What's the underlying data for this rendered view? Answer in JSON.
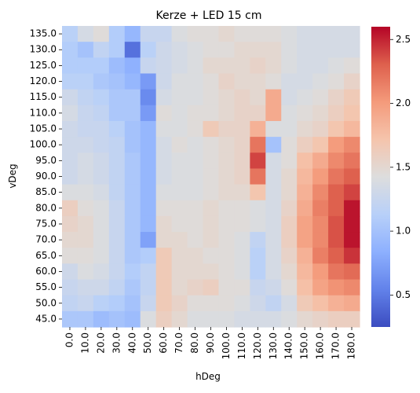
{
  "chart_data": {
    "type": "heatmap",
    "title": "Kerze + LED 15 cm",
    "xlabel": "hDeg",
    "ylabel": "vDeg",
    "x_categories": [
      "0.0",
      "10.0",
      "20.0",
      "30.0",
      "40.0",
      "50.0",
      "60.0",
      "70.0",
      "80.0",
      "90.0",
      "100.0",
      "110.0",
      "120.0",
      "130.0",
      "140.0",
      "150.0",
      "160.0",
      "170.0",
      "180.0"
    ],
    "y_categories": [
      "135.0",
      "130.0",
      "125.0",
      "120.0",
      "115.0",
      "110.0",
      "105.0",
      "100.0",
      "95.0",
      "90.0",
      "85.0",
      "80.0",
      "75.0",
      "70.0",
      "65.0",
      "60.0",
      "55.0",
      "50.0",
      "45.0"
    ],
    "values": [
      [
        1.15,
        1.35,
        1.45,
        1.1,
        0.9,
        1.25,
        1.25,
        1.4,
        1.45,
        1.45,
        1.5,
        1.45,
        1.45,
        1.45,
        1.4,
        1.35,
        1.35,
        1.35,
        1.35
      ],
      [
        1.1,
        1.0,
        1.2,
        1.1,
        0.45,
        1.15,
        1.3,
        1.35,
        1.4,
        1.45,
        1.45,
        1.5,
        1.5,
        1.5,
        1.4,
        1.35,
        1.35,
        1.35,
        1.35
      ],
      [
        1.1,
        1.1,
        1.1,
        0.95,
        0.85,
        1.25,
        1.3,
        1.35,
        1.4,
        1.5,
        1.5,
        1.5,
        1.55,
        1.5,
        1.4,
        1.35,
        1.35,
        1.4,
        1.45
      ],
      [
        1.15,
        1.15,
        1.05,
        1.0,
        0.9,
        0.7,
        1.3,
        1.4,
        1.4,
        1.45,
        1.55,
        1.5,
        1.5,
        1.45,
        1.35,
        1.35,
        1.4,
        1.45,
        1.55
      ],
      [
        1.3,
        1.2,
        1.15,
        1.05,
        1.05,
        0.6,
        1.35,
        1.4,
        1.4,
        1.45,
        1.5,
        1.55,
        1.5,
        1.9,
        1.35,
        1.4,
        1.45,
        1.55,
        1.65
      ],
      [
        1.35,
        1.25,
        1.2,
        1.05,
        1.05,
        0.7,
        1.45,
        1.4,
        1.45,
        1.45,
        1.5,
        1.55,
        1.55,
        1.9,
        1.4,
        1.45,
        1.5,
        1.6,
        1.7
      ],
      [
        1.3,
        1.25,
        1.25,
        1.15,
        1.0,
        0.9,
        1.4,
        1.4,
        1.45,
        1.65,
        1.55,
        1.55,
        1.85,
        1.4,
        1.4,
        1.5,
        1.55,
        1.7,
        1.8
      ],
      [
        1.3,
        1.3,
        1.25,
        1.2,
        1.0,
        0.9,
        1.35,
        1.45,
        1.4,
        1.45,
        1.5,
        1.55,
        2.2,
        1.0,
        1.45,
        1.6,
        1.7,
        2.0,
        2.1
      ],
      [
        1.3,
        1.35,
        1.3,
        1.2,
        1.05,
        0.9,
        1.35,
        1.4,
        1.4,
        1.45,
        1.5,
        1.55,
        2.4,
        1.35,
        1.45,
        1.75,
        1.9,
        2.1,
        2.2
      ],
      [
        1.3,
        1.35,
        1.3,
        1.2,
        1.05,
        0.9,
        1.35,
        1.4,
        1.4,
        1.45,
        1.5,
        1.55,
        2.2,
        1.35,
        1.5,
        1.8,
        2.0,
        2.2,
        2.3
      ],
      [
        1.4,
        1.4,
        1.35,
        1.2,
        1.05,
        0.9,
        1.4,
        1.4,
        1.4,
        1.45,
        1.5,
        1.5,
        1.7,
        1.35,
        1.5,
        1.85,
        2.1,
        2.3,
        2.4
      ],
      [
        1.6,
        1.45,
        1.4,
        1.25,
        1.05,
        0.9,
        1.45,
        1.45,
        1.45,
        1.5,
        1.45,
        1.45,
        1.4,
        1.35,
        1.55,
        1.9,
        2.15,
        2.3,
        2.55
      ],
      [
        1.55,
        1.5,
        1.4,
        1.25,
        1.05,
        0.9,
        1.5,
        1.45,
        1.45,
        1.5,
        1.45,
        1.45,
        1.4,
        1.35,
        1.6,
        1.95,
        2.1,
        2.35,
        2.55
      ],
      [
        1.5,
        1.5,
        1.4,
        1.25,
        1.05,
        0.75,
        1.5,
        1.5,
        1.45,
        1.5,
        1.45,
        1.4,
        1.2,
        1.35,
        1.6,
        1.95,
        2.1,
        2.35,
        2.55
      ],
      [
        1.45,
        1.45,
        1.4,
        1.25,
        1.05,
        1.1,
        1.65,
        1.5,
        1.5,
        1.45,
        1.45,
        1.4,
        1.15,
        1.35,
        1.55,
        1.85,
        2.15,
        2.3,
        2.45
      ],
      [
        1.3,
        1.4,
        1.35,
        1.25,
        1.1,
        1.2,
        1.65,
        1.5,
        1.5,
        1.5,
        1.45,
        1.4,
        1.15,
        1.35,
        1.5,
        1.8,
        2.0,
        2.2,
        2.25
      ],
      [
        1.25,
        1.3,
        1.3,
        1.2,
        1.05,
        1.2,
        1.65,
        1.5,
        1.55,
        1.6,
        1.45,
        1.45,
        1.25,
        1.3,
        1.45,
        1.75,
        1.95,
        2.05,
        2.1
      ],
      [
        1.2,
        1.25,
        1.15,
        1.1,
        1.0,
        1.25,
        1.65,
        1.55,
        1.45,
        1.45,
        1.45,
        1.4,
        1.3,
        1.2,
        1.35,
        1.65,
        1.75,
        1.85,
        1.9
      ],
      [
        1.05,
        1.05,
        0.95,
        1.0,
        0.95,
        1.4,
        1.6,
        1.5,
        1.4,
        1.4,
        1.4,
        1.35,
        1.35,
        1.35,
        1.4,
        1.5,
        1.55,
        1.6,
        1.6
      ]
    ],
    "vmin": 0.25,
    "vmax": 2.6,
    "colorbar_ticks": [
      0.5,
      1.0,
      1.5,
      2.0,
      2.5
    ],
    "colorbar_tick_labels": [
      "0.5",
      "1.0",
      "1.5",
      "2.0",
      "2.5"
    ],
    "colormap": "coolwarm",
    "colormap_stops": [
      "#3b4cc0",
      "#6282ea",
      "#8db0fe",
      "#b8d0f9",
      "#dddddd",
      "#f5c4ac",
      "#f49a7b",
      "#de604d",
      "#b40426"
    ],
    "grid": false
  }
}
